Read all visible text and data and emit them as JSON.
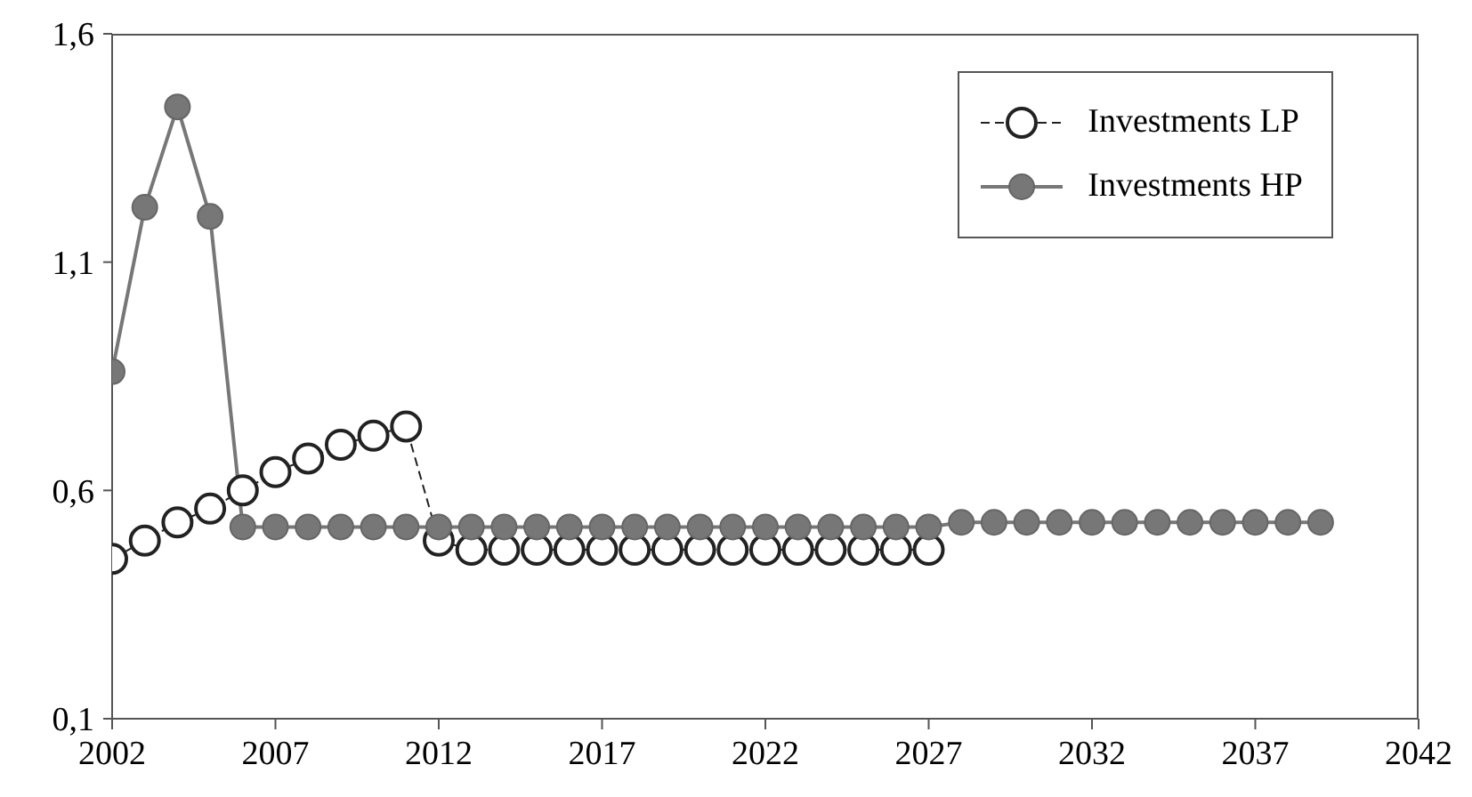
{
  "chart_data": {
    "type": "line",
    "x": [
      2002,
      2003,
      2004,
      2005,
      2006,
      2007,
      2008,
      2009,
      2010,
      2011,
      2012,
      2013,
      2014,
      2015,
      2016,
      2017,
      2018,
      2019,
      2020,
      2021,
      2022,
      2023,
      2024,
      2025,
      2026,
      2027,
      2028,
      2029,
      2030,
      2031,
      2032,
      2033,
      2034,
      2035,
      2036,
      2037,
      2038,
      2039
    ],
    "series": [
      {
        "name": "Investments LP",
        "color": "#222222",
        "line_style": "dashed",
        "marker": "circle",
        "values": [
          0.45,
          0.49,
          0.53,
          0.56,
          0.6,
          0.64,
          0.67,
          0.7,
          0.72,
          0.74,
          0.49,
          0.47,
          0.47,
          0.47,
          0.47,
          0.47,
          0.47,
          0.47,
          0.47,
          0.47,
          0.47,
          0.47,
          0.47,
          0.47,
          0.47,
          0.47,
          null,
          null,
          null,
          null,
          null,
          null,
          null,
          null,
          null,
          null,
          null,
          null
        ]
      },
      {
        "name": "Investments HP",
        "color": "#777777",
        "line_style": "solid",
        "marker": "circle",
        "values": [
          0.86,
          1.22,
          1.44,
          1.2,
          0.52,
          0.52,
          0.52,
          0.52,
          0.52,
          0.52,
          0.52,
          0.52,
          0.52,
          0.52,
          0.52,
          0.52,
          0.52,
          0.52,
          0.52,
          0.52,
          0.52,
          0.52,
          0.52,
          0.52,
          0.52,
          0.52,
          0.53,
          0.53,
          0.53,
          0.53,
          0.53,
          0.53,
          0.53,
          0.53,
          0.53,
          0.53,
          0.53,
          0.53
        ]
      }
    ],
    "xlim": [
      2002,
      2042
    ],
    "xticks": [
      2002,
      2007,
      2012,
      2017,
      2022,
      2027,
      2032,
      2037,
      2042
    ],
    "ylim": [
      0.1,
      1.6
    ],
    "yticks": [
      {
        "value": 0.1,
        "label": "0,1"
      },
      {
        "value": 0.6,
        "label": "0,6"
      },
      {
        "value": 1.1,
        "label": "1,1"
      },
      {
        "value": 1.6,
        "label": "1,6"
      }
    ],
    "grid": false,
    "legend": "top right"
  }
}
